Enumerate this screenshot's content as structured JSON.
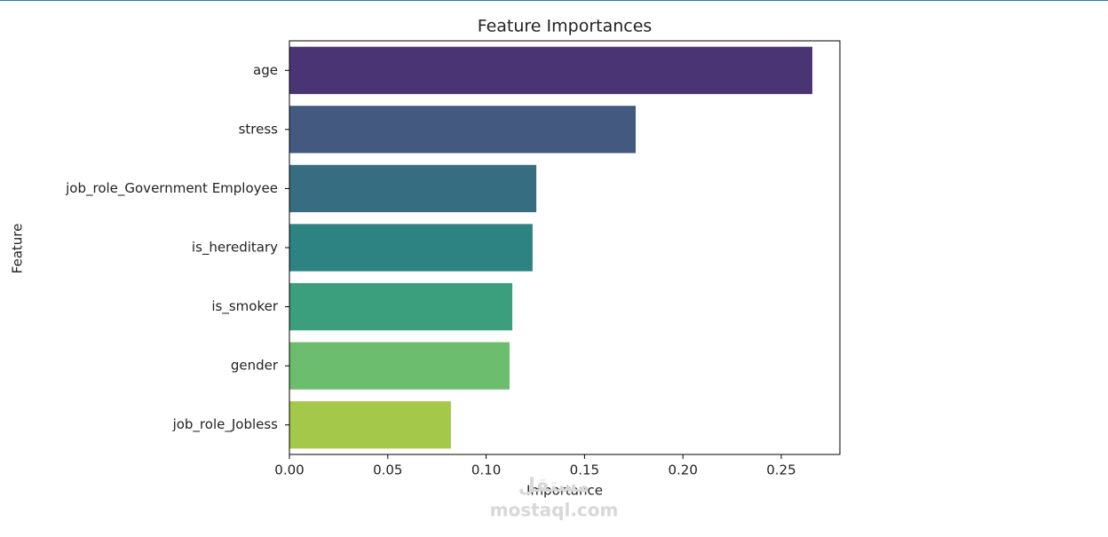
{
  "chart_data": {
    "type": "barh",
    "title": "Feature Importances",
    "xlabel": "Importance",
    "ylabel": "Feature",
    "categories": [
      "age",
      "stress",
      "job_role_Government Employee",
      "is_hereditary",
      "is_smoker",
      "gender",
      "job_role_Jobless"
    ],
    "values": [
      0.2658,
      0.176,
      0.1255,
      0.1236,
      0.1133,
      0.1119,
      0.0821
    ],
    "colors": [
      "#4b3473",
      "#44597f",
      "#376d80",
      "#2d8381",
      "#3b9e7c",
      "#6cbd6d",
      "#a4c84a"
    ],
    "xlim": [
      0,
      0.2798
    ],
    "xticks": [
      {
        "value": 0,
        "label": "0.00"
      },
      0.05,
      {
        "value": 0.1,
        "label": "0.10"
      },
      0.15,
      {
        "value": 0.2,
        "label": "0.20"
      },
      0.25
    ]
  },
  "watermark": {
    "arabic": "مستقل",
    "site": "mostaql.com"
  }
}
